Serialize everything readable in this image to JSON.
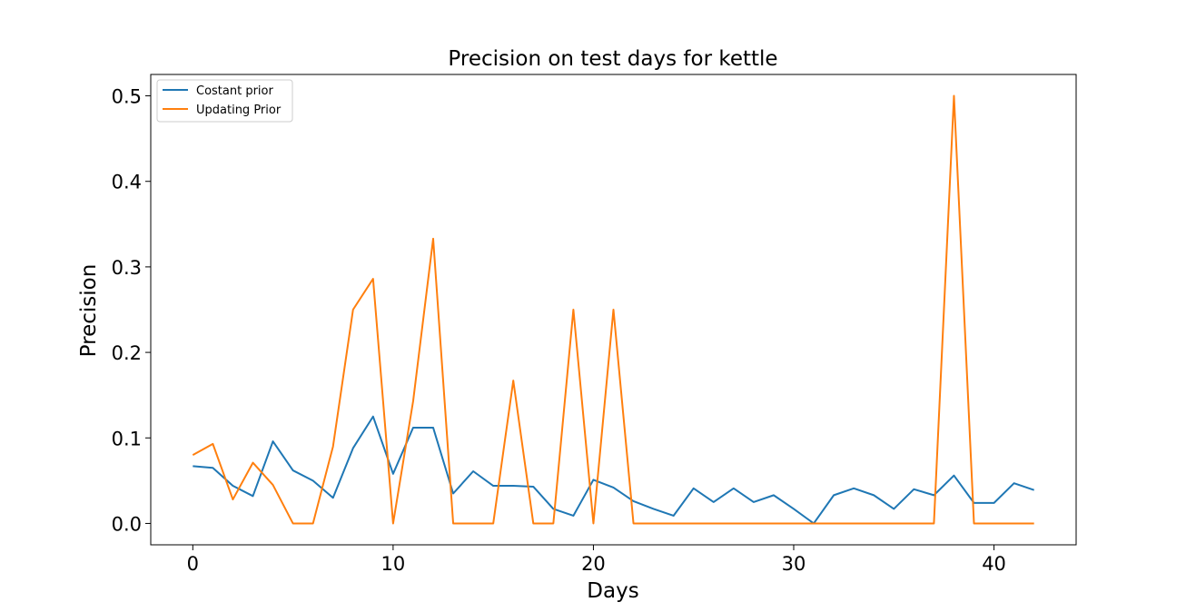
{
  "chart_data": {
    "type": "line",
    "title": "Precision on test days for kettle",
    "xlabel": "Days",
    "ylabel": "Precision",
    "xlim": [
      -2.1,
      44.1
    ],
    "ylim": [
      -0.025,
      0.525
    ],
    "xticks": [
      0,
      10,
      20,
      30,
      40
    ],
    "xtick_labels": [
      "0",
      "10",
      "20",
      "30",
      "40"
    ],
    "yticks": [
      0.0,
      0.1,
      0.2,
      0.3,
      0.4,
      0.5
    ],
    "ytick_labels": [
      "0.0",
      "0.1",
      "0.2",
      "0.3",
      "0.4",
      "0.5"
    ],
    "grid": false,
    "legend_position": "upper-left",
    "x": [
      0,
      1,
      2,
      3,
      4,
      5,
      6,
      7,
      8,
      9,
      10,
      11,
      12,
      13,
      14,
      15,
      16,
      17,
      18,
      19,
      20,
      21,
      22,
      23,
      24,
      25,
      26,
      27,
      28,
      29,
      30,
      31,
      32,
      33,
      34,
      35,
      36,
      37,
      38,
      39,
      40,
      41,
      42
    ],
    "series": [
      {
        "name": "Costant prior",
        "color": "#1f77b4",
        "values": [
          0.067,
          0.065,
          0.044,
          0.032,
          0.096,
          0.062,
          0.05,
          0.03,
          0.088,
          0.125,
          0.058,
          0.112,
          0.112,
          0.035,
          0.061,
          0.044,
          0.044,
          0.043,
          0.017,
          0.009,
          0.051,
          0.042,
          0.026,
          0.017,
          0.009,
          0.041,
          0.025,
          0.041,
          0.025,
          0.033,
          0.017,
          0.0,
          0.033,
          0.041,
          0.033,
          0.017,
          0.04,
          0.033,
          0.056,
          0.024,
          0.024,
          0.047,
          0.039
        ]
      },
      {
        "name": "Updating Prior",
        "color": "#ff7f0e",
        "values": [
          0.08,
          0.093,
          0.028,
          0.071,
          0.045,
          0.0,
          0.0,
          0.09,
          0.25,
          0.286,
          0.0,
          0.143,
          0.333,
          0.0,
          0.0,
          0.0,
          0.167,
          0.0,
          0.0,
          0.25,
          0.0,
          0.25,
          0.0,
          0.0,
          0.0,
          0.0,
          0.0,
          0.0,
          0.0,
          0.0,
          0.0,
          0.0,
          0.0,
          0.0,
          0.0,
          0.0,
          0.0,
          0.0,
          0.5,
          0.0,
          0.0,
          0.0,
          0.0
        ]
      }
    ]
  }
}
